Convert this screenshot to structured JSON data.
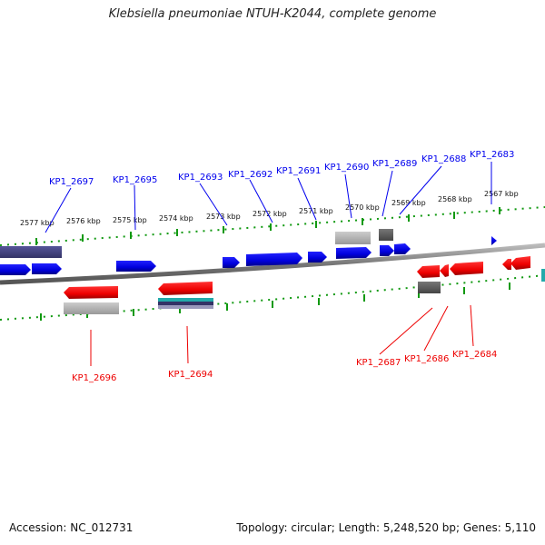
{
  "title": "Klebsiella pneumoniae NTUH-K2044, complete genome",
  "footer": {
    "accession": "Accession: NC_012731",
    "topology": "Topology: circular; Length: 5,248,520 bp; Genes: 5,110"
  },
  "colors": {
    "forward_gene": "#0000ee",
    "reverse_gene": "#ee0000",
    "backbone": "#888888",
    "ruler_ticks": "#119911",
    "feature_light_gray": "#bbbbbb",
    "feature_dark_gray": "#666666",
    "feature_navy": "#444488",
    "feature_teal": "#22aaaa"
  },
  "ruler_labels": [
    "2577 kbp",
    "2576 kbp",
    "2575 kbp",
    "2574 kbp",
    "2573 kbp",
    "2572 kbp",
    "2571 kbp",
    "2570 kbp",
    "2569 kbp",
    "2568 kbp",
    "2567 kbp"
  ],
  "forward_genes": [
    "KP1_2697",
    "KP1_2695",
    "KP1_2693",
    "KP1_2692",
    "KP1_2691",
    "KP1_2690",
    "KP1_2689",
    "KP1_2688",
    "KP1_2683"
  ],
  "reverse_genes": [
    "KP1_2696",
    "KP1_2694",
    "KP1_2687",
    "KP1_2686",
    "KP1_2684"
  ]
}
